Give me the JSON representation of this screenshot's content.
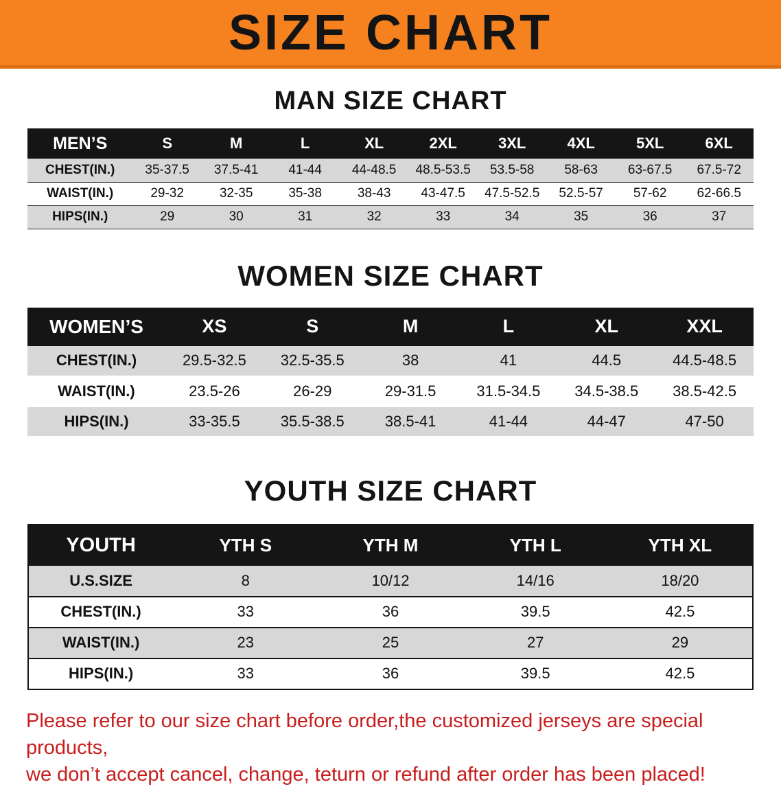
{
  "banner": {
    "title": "SIZE CHART",
    "bg_color": "#f5821f",
    "text_color": "#141414"
  },
  "sections": [
    {
      "title": "MAN SIZE CHART",
      "table": {
        "header": [
          "MEN’S",
          "S",
          "M",
          "L",
          "XL",
          "2XL",
          "3XL",
          "4XL",
          "5XL",
          "6XL"
        ],
        "rows": [
          [
            "CHEST(IN.)",
            "35-37.5",
            "37.5-41",
            "41-44",
            "44-48.5",
            "48.5-53.5",
            "53.5-58",
            "58-63",
            "63-67.5",
            "67.5-72"
          ],
          [
            "WAIST(IN.)",
            "29-32",
            "32-35",
            "35-38",
            "38-43",
            "43-47.5",
            "47.5-52.5",
            "52.5-57",
            "57-62",
            "62-66.5"
          ],
          [
            "HIPS(IN.)",
            "29",
            "30",
            "31",
            "32",
            "33",
            "34",
            "35",
            "36",
            "37"
          ]
        ]
      }
    },
    {
      "title": "WOMEN SIZE CHART",
      "table": {
        "header": [
          "WOMEN’S",
          "XS",
          "S",
          "M",
          "L",
          "XL",
          "XXL"
        ],
        "rows": [
          [
            "CHEST(IN.)",
            "29.5-32.5",
            "32.5-35.5",
            "38",
            "41",
            "44.5",
            "44.5-48.5"
          ],
          [
            "WAIST(IN.)",
            "23.5-26",
            "26-29",
            "29-31.5",
            "31.5-34.5",
            "34.5-38.5",
            "38.5-42.5"
          ],
          [
            "HIPS(IN.)",
            "33-35.5",
            "35.5-38.5",
            "38.5-41",
            "41-44",
            "44-47",
            "47-50"
          ]
        ]
      }
    },
    {
      "title": "YOUTH SIZE CHART",
      "table": {
        "header": [
          "YOUTH",
          "YTH S",
          "YTH M",
          "YTH L",
          "YTH XL"
        ],
        "rows": [
          [
            "U.S.SIZE",
            "8",
            "10/12",
            "14/16",
            "18/20"
          ],
          [
            "CHEST(IN.)",
            "33",
            "36",
            "39.5",
            "42.5"
          ],
          [
            "WAIST(IN.)",
            "23",
            "25",
            "27",
            "29"
          ],
          [
            "HIPS(IN.)",
            "33",
            "36",
            "39.5",
            "42.5"
          ]
        ]
      }
    }
  ],
  "notice": {
    "line1": "Please refer to our size chart before order,the customized jerseys are special products,",
    "line2": "we don’t accept cancel, change, teturn or refund after order has been placed!",
    "text_color": "#c91d1d"
  }
}
